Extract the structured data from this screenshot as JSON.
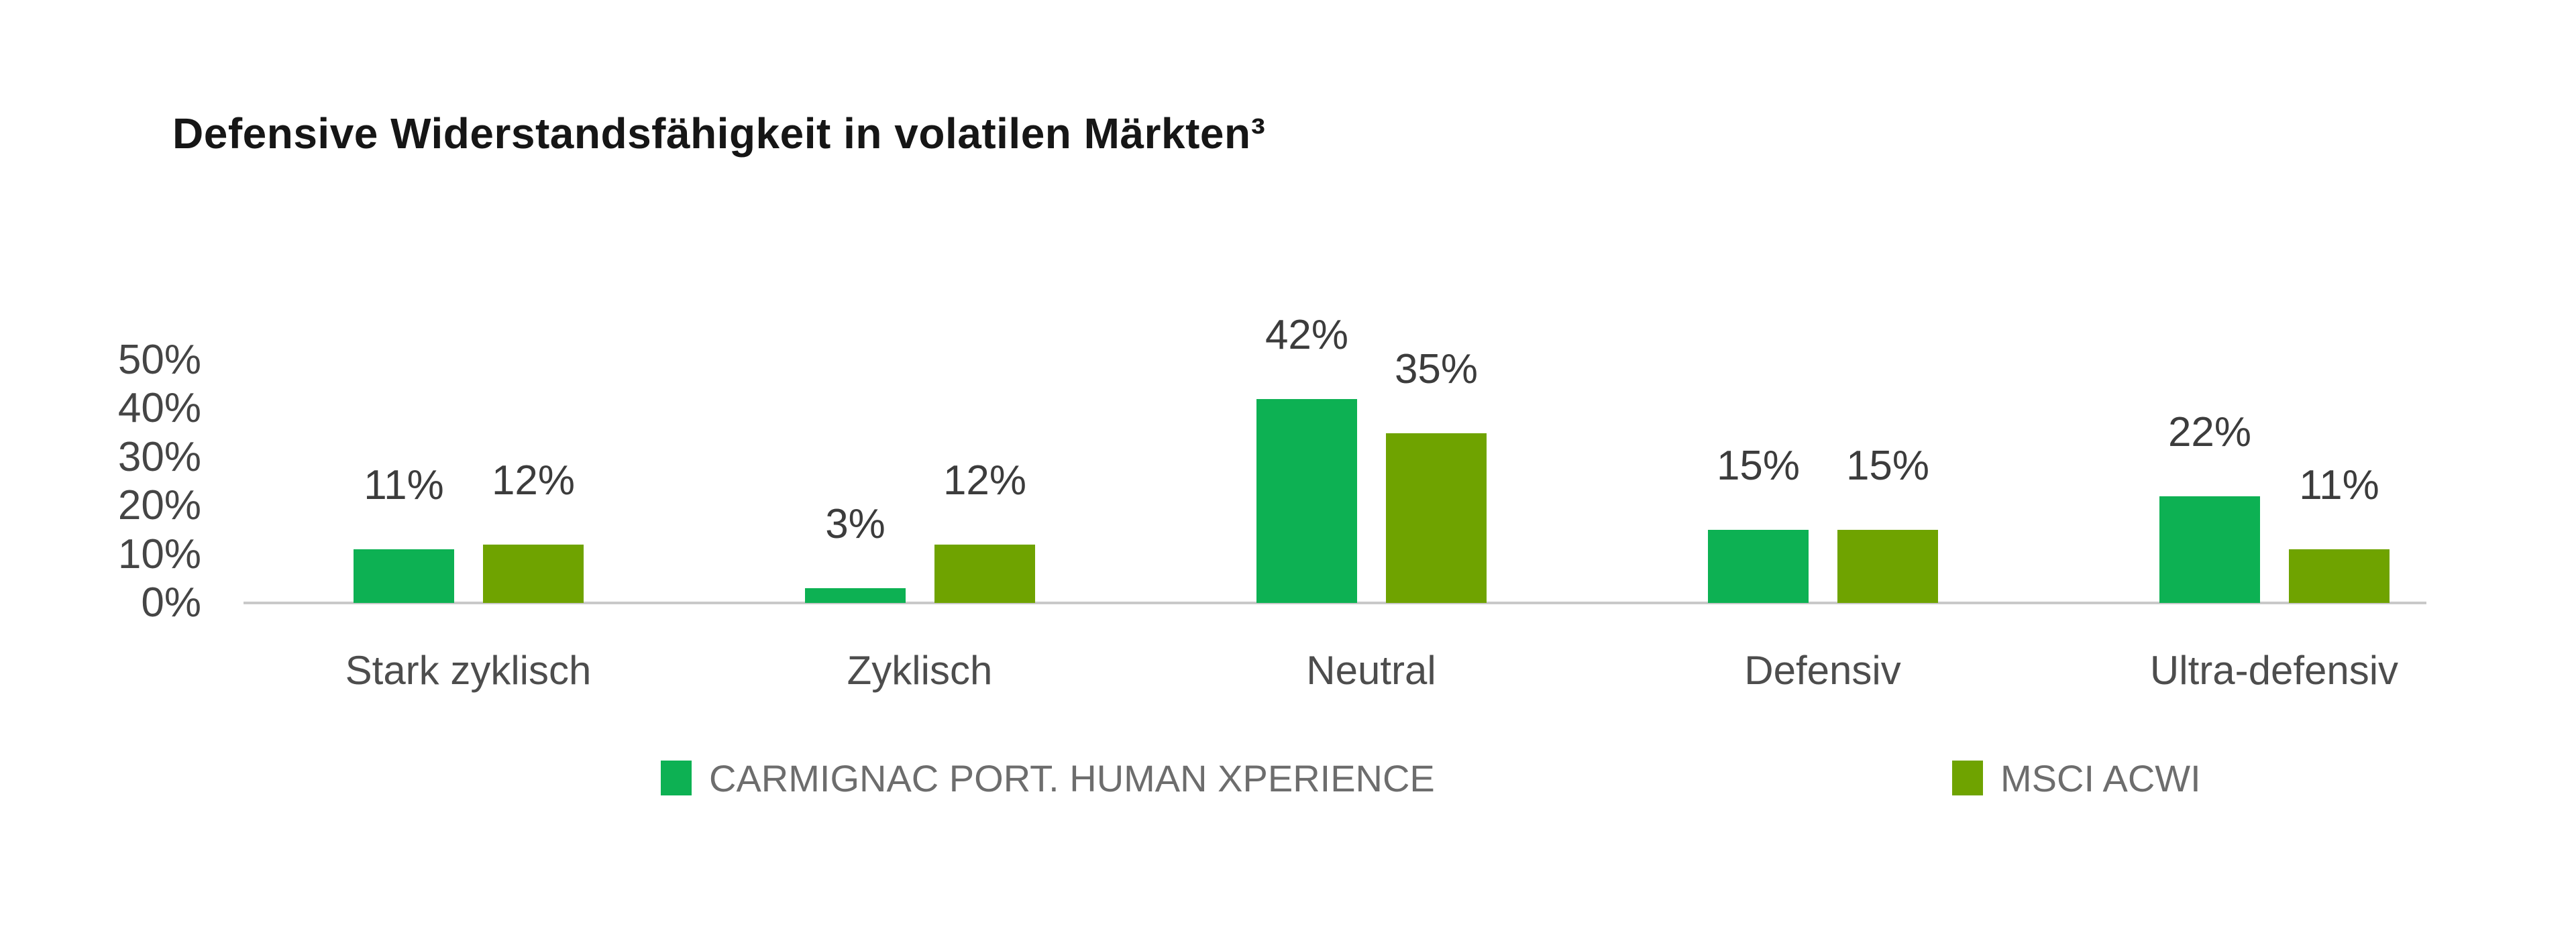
{
  "title": "Defensive Widerstandsfähigkeit in volatilen Märkten³",
  "colors": {
    "series1": "#0db153",
    "series2": "#6fa300",
    "axis_line": "#c9c9c9",
    "background": "#ffffff",
    "title_text": "#161616",
    "axis_tick_text": "#454545",
    "data_label_text": "#3c3c3c",
    "category_text": "#4d4d4d",
    "legend_text": "#6d6d6d"
  },
  "y_axis": {
    "tick_labels": [
      "50%",
      "40%",
      "30%",
      "20%",
      "10%",
      "0%"
    ]
  },
  "chart_data": {
    "type": "bar",
    "title": "Defensive Widerstandsfähigkeit in volatilen Märkten³",
    "categories": [
      "Stark zyklisch",
      "Zyklisch",
      "Neutral",
      "Defensiv",
      "Ultra-defensiv"
    ],
    "series": [
      {
        "name": "CARMIGNAC PORT. HUMAN XPERIENCE",
        "color": "#0db153",
        "values": [
          11,
          3,
          42,
          15,
          22
        ],
        "labels": [
          "11%",
          "3%",
          "42%",
          "15%",
          "22%"
        ]
      },
      {
        "name": "MSCI ACWI",
        "color": "#6fa300",
        "values": [
          12,
          12,
          35,
          15,
          11
        ],
        "labels": [
          "12%",
          "12%",
          "35%",
          "15%",
          "11%"
        ]
      }
    ],
    "xlabel": "",
    "ylabel": "",
    "ylim": [
      0,
      50
    ],
    "y_ticks_percent": [
      0,
      10,
      20,
      30,
      40,
      50
    ],
    "grid": false,
    "legend_position": "bottom"
  },
  "legend": {
    "items": [
      {
        "label": "CARMIGNAC PORT. HUMAN XPERIENCE",
        "color": "#0db153"
      },
      {
        "label": "MSCI ACWI",
        "color": "#6fa300"
      }
    ]
  }
}
